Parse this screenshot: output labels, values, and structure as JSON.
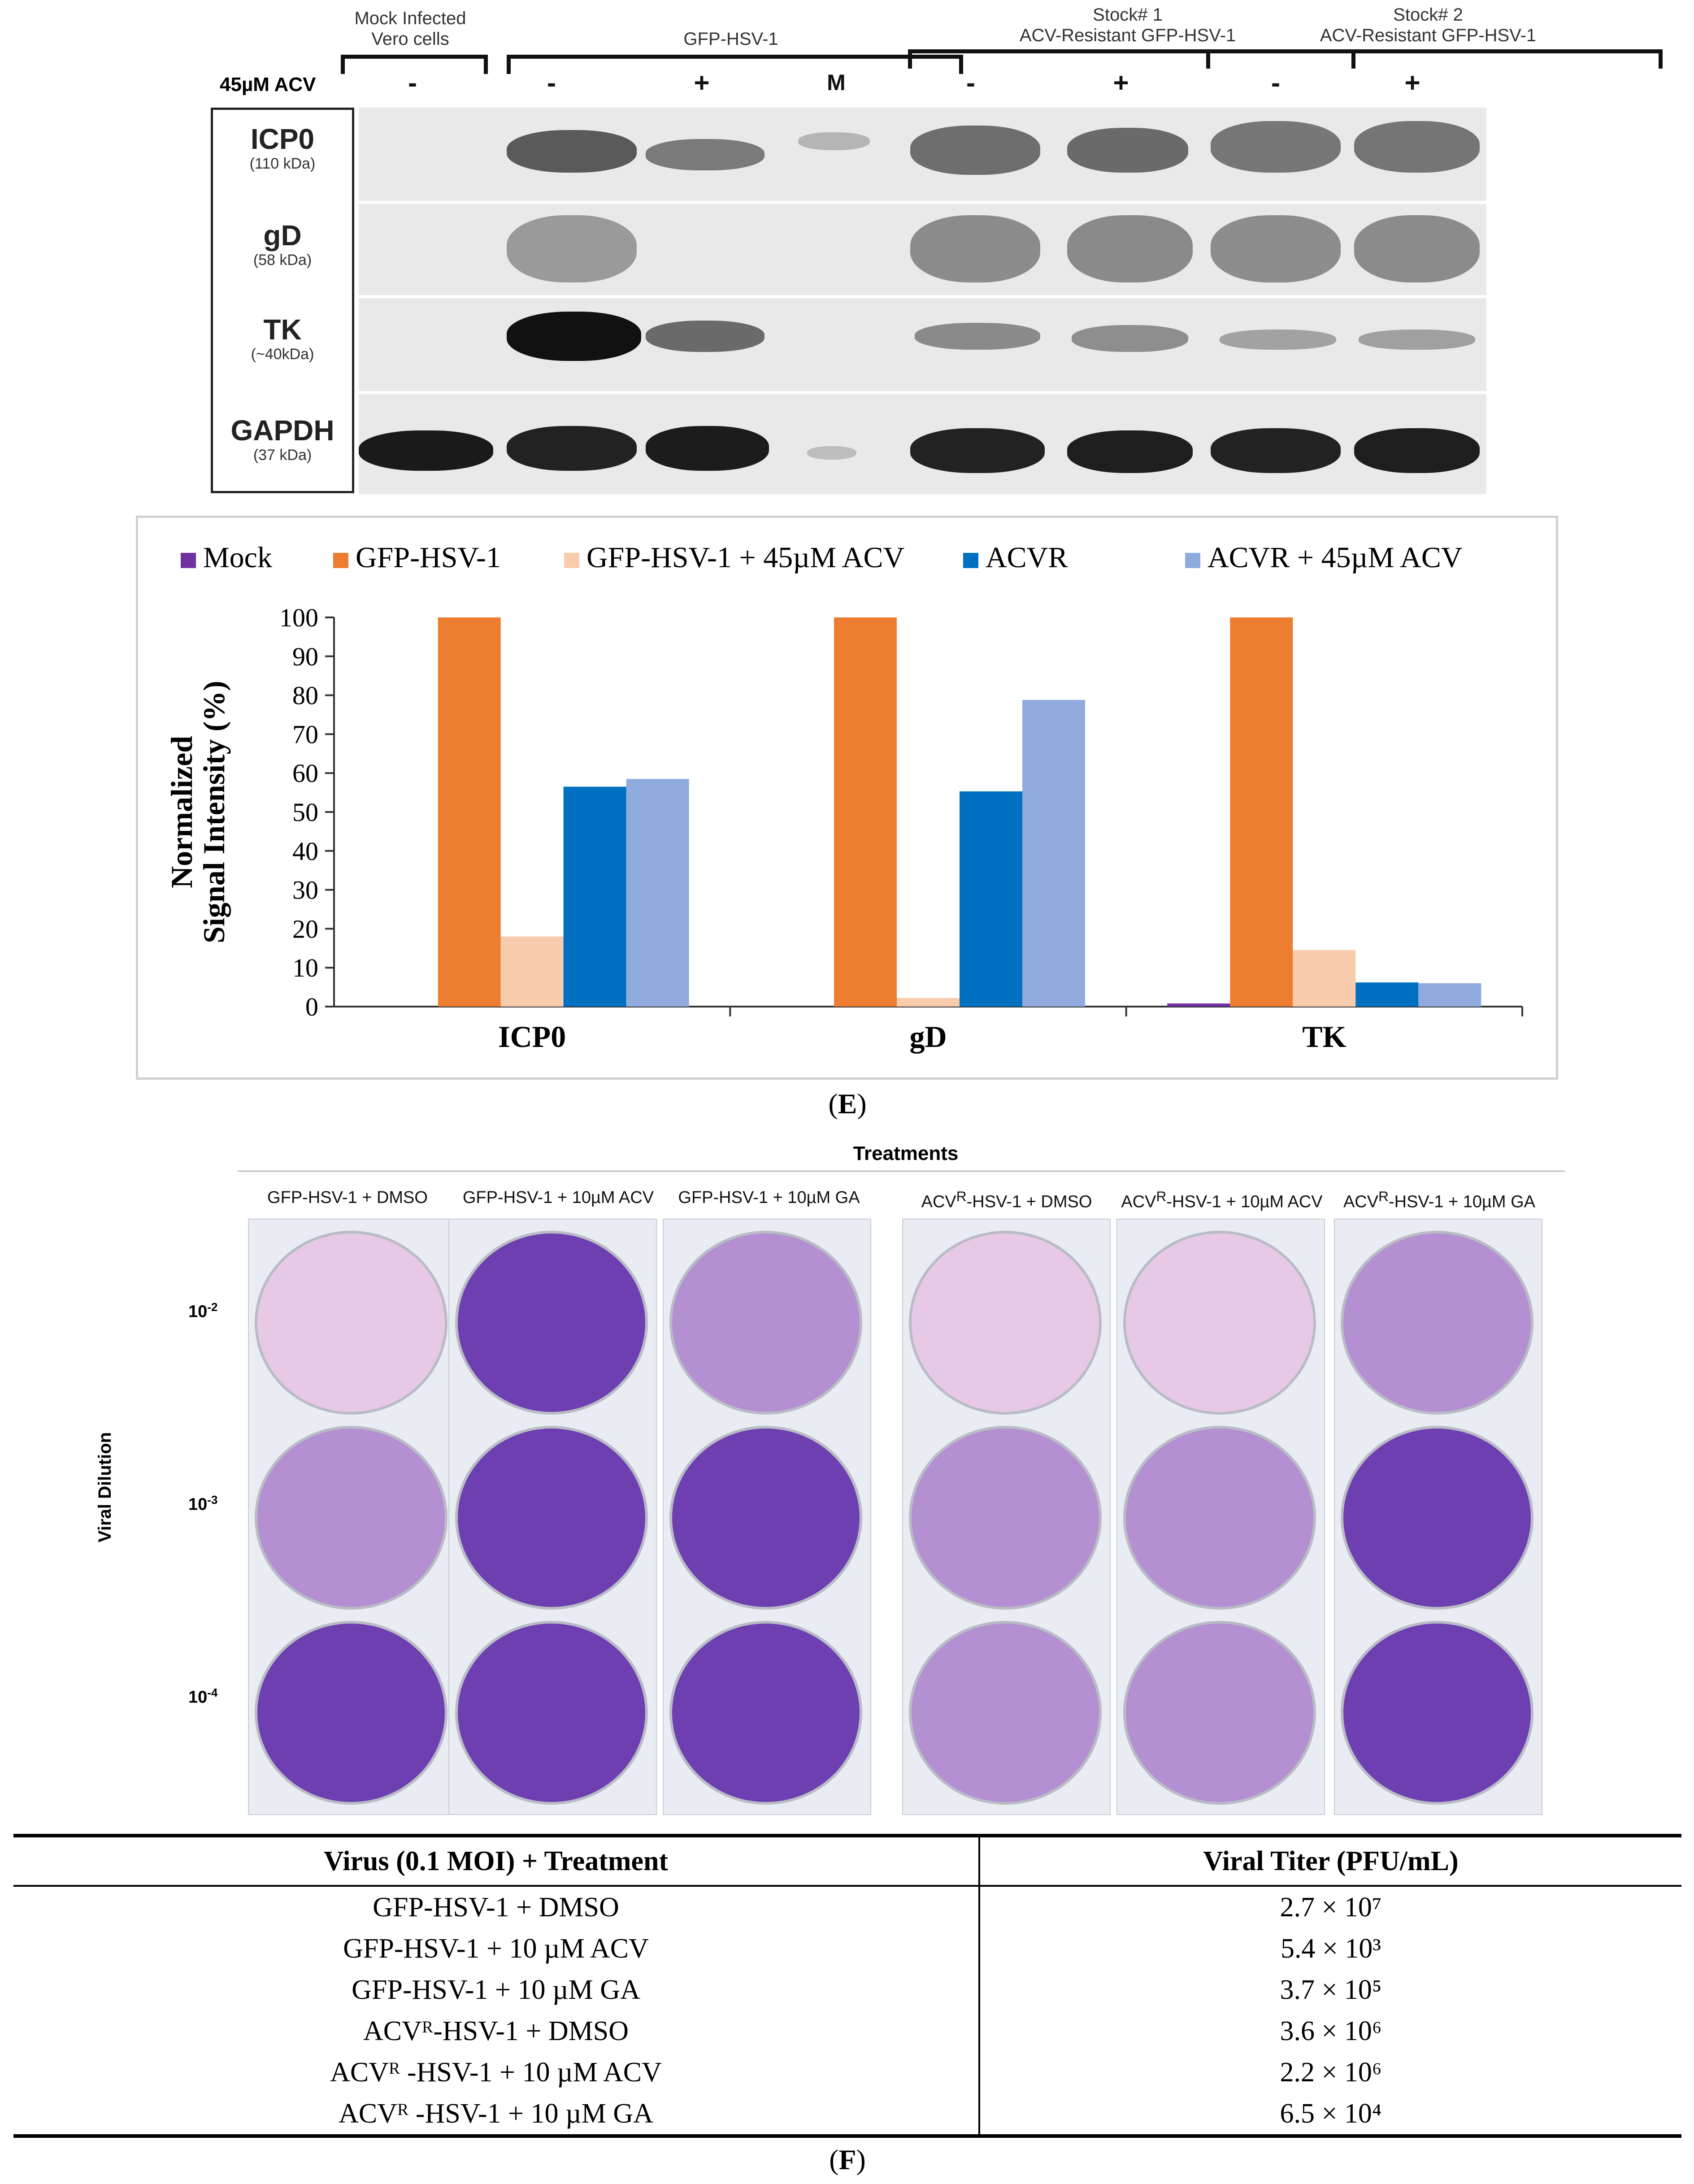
{
  "blot": {
    "header": {
      "mock": "Mock Infected\nVero cells",
      "gfp": "GFP-HSV-1",
      "stock1": "Stock# 1\nACV-Resistant GFP-HSV-1",
      "stock2": "Stock# 2\nACV-Resistant GFP-HSV-1",
      "acv_label": "45µM ACV",
      "marker": "M",
      "minus": "-",
      "plus": "+"
    },
    "proteins": [
      {
        "name": "ICP0",
        "kda": "(110 kDa)"
      },
      {
        "name": "gD",
        "kda": "(58 kDa)"
      },
      {
        "name": "TK",
        "kda": "(~40kDa)"
      },
      {
        "name": "GAPDH",
        "kda": "(37 kDa)"
      }
    ]
  },
  "chart_data": {
    "type": "bar",
    "title": "",
    "xlabel": "",
    "ylabel": "Normalized Signal Intensity (%)",
    "ylabel_lines": [
      "Normalized",
      "Signal Intensity (%)"
    ],
    "ylim": [
      0,
      100
    ],
    "yticks": [
      0,
      10,
      20,
      30,
      40,
      50,
      60,
      70,
      80,
      90,
      100
    ],
    "grid": false,
    "legend_position": "top",
    "categories": [
      "ICP0",
      "gD",
      "TK"
    ],
    "series": [
      {
        "name": "Mock",
        "color": "#7030a0",
        "values": [
          0,
          0,
          0.8
        ]
      },
      {
        "name": "GFP-HSV-1",
        "color": "#ed7d31",
        "values": [
          100,
          100,
          100
        ]
      },
      {
        "name": "GFP-HSV-1 + 45µM ACV",
        "color": "#f8cbad",
        "values": [
          18,
          2.2,
          14.5
        ]
      },
      {
        "name": "ACVR",
        "color": "#0070c0",
        "values": [
          56.5,
          55.3,
          6.2
        ]
      },
      {
        "name": "ACVR + 45µM ACV",
        "color": "#8faadc",
        "values": [
          58.5,
          78.8,
          6
        ]
      }
    ]
  },
  "panels": {
    "e": "(E)",
    "f": "(F)",
    "e_letter": "E",
    "f_letter": "F"
  },
  "plates": {
    "title": "Treatments",
    "axis_label": "Viral Dilution",
    "columns": [
      "GFP-HSV-1 + DMSO",
      "GFP-HSV-1 + 10µM ACV",
      "GFP-HSV-1 + 10µM GA",
      "ACVR-HSV-1 + DMSO",
      "ACVR-HSV-1 + 10µM ACV",
      "ACVR-HSV-1 + 10µM GA"
    ],
    "dilutions": [
      {
        "base": "10",
        "exp": "-2"
      },
      {
        "base": "10",
        "exp": "-3"
      },
      {
        "base": "10",
        "exp": "-4"
      }
    ],
    "stain_colors": {
      "light": "#e7c8e6",
      "medium": "#b48fd2",
      "dark": "#6d3fb0",
      "plate_border": "#b9bcc6"
    }
  },
  "table": {
    "headers": [
      "Virus (0.1 MOI) + Treatment",
      "Viral Titer (PFU/mL)"
    ],
    "rows": [
      {
        "treatment": "GFP-HSV-1 + DMSO",
        "titer": "2.7 × 10⁷"
      },
      {
        "treatment": "GFP-HSV-1 + 10 µM ACV",
        "titer": "5.4 × 10³"
      },
      {
        "treatment": "GFP-HSV-1 + 10 µM GA",
        "titer": "3.7 × 10⁵"
      },
      {
        "treatment": "ACVᴿ-HSV-1 + DMSO",
        "titer": "3.6 × 10⁶"
      },
      {
        "treatment": "ACVᴿ -HSV-1 + 10 µM ACV",
        "titer": "2.2 × 10⁶"
      },
      {
        "treatment": "ACVᴿ -HSV-1 + 10 µM GA",
        "titer": "6.5 × 10⁴"
      }
    ]
  }
}
